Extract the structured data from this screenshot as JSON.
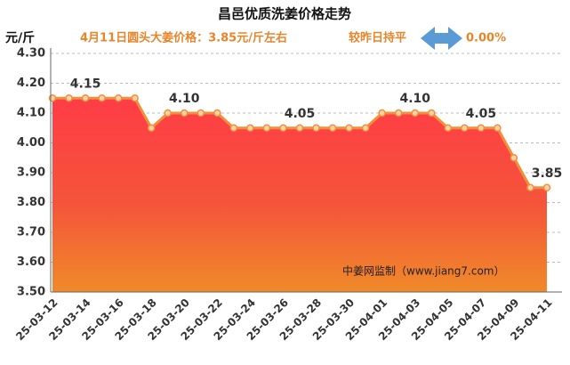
{
  "chart_data": {
    "type": "area-line",
    "title": "昌邑优质洗姜价格走势",
    "y_unit": "元/斤",
    "subtitle": "4月11日圆头大姜价格：3.85元/斤左右",
    "change_text": "较昨日持平",
    "change_value": "0.00%",
    "watermark": "中姜网监制（www.jiang7.com）",
    "categories": [
      "25-03-12",
      null,
      "25-03-14",
      null,
      "25-03-16",
      null,
      "25-03-18",
      null,
      "25-03-20",
      null,
      "25-03-22",
      null,
      "25-03-24",
      null,
      "25-03-26",
      null,
      "25-03-28",
      null,
      "25-03-30",
      null,
      "25-04-01",
      null,
      "25-04-03",
      null,
      "25-04-05",
      null,
      "25-04-07",
      null,
      "25-04-09",
      null,
      "25-04-11"
    ],
    "values": [
      4.15,
      4.15,
      4.15,
      4.15,
      4.15,
      4.15,
      4.05,
      4.1,
      4.1,
      4.1,
      4.1,
      4.05,
      4.05,
      4.05,
      4.05,
      4.05,
      4.05,
      4.05,
      4.05,
      4.05,
      4.1,
      4.1,
      4.1,
      4.1,
      4.05,
      4.05,
      4.05,
      4.05,
      3.95,
      3.85,
      3.85
    ],
    "value_labels": [
      null,
      null,
      "4.15",
      null,
      null,
      null,
      null,
      null,
      "4.10",
      null,
      null,
      null,
      null,
      null,
      null,
      "4.05",
      null,
      null,
      null,
      null,
      null,
      null,
      "4.10",
      null,
      null,
      null,
      "4.05",
      null,
      null,
      null,
      "3.85"
    ],
    "color": "#f0903a",
    "ylim": [
      3.5,
      4.3
    ],
    "yticks": [
      {
        "value": 3.5,
        "label": "3.50"
      },
      {
        "value": 3.6,
        "label": "3.60"
      },
      {
        "value": 3.7,
        "label": "3.70"
      },
      {
        "value": 3.8,
        "label": "3.80"
      },
      {
        "value": 3.9,
        "label": "3.90"
      },
      {
        "value": 4.0,
        "label": "4.00"
      },
      {
        "value": 4.1,
        "label": "4.10"
      },
      {
        "value": 4.2,
        "label": "4.20"
      },
      {
        "value": 4.3,
        "label": "4.30"
      }
    ],
    "grid": true
  }
}
